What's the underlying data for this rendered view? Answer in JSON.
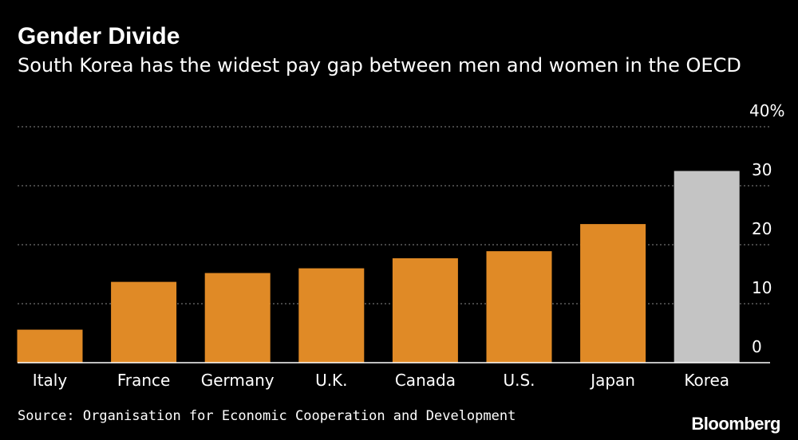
{
  "header": {
    "title": "Gender Divide",
    "subtitle": "South Korea has the widest pay gap between men and women in the OECD"
  },
  "footer": {
    "source": "Source: Organisation for Economic Cooperation and Development",
    "logo": "Bloomberg"
  },
  "colors": {
    "background": "#000000",
    "bar": "#e08a26",
    "highlight_bar": "#c4c4c4",
    "text": "#ffffff",
    "grid": "#8a8a8a"
  },
  "chart_data": {
    "type": "bar",
    "title": "Gender Divide",
    "subtitle": "South Korea has the widest pay gap between men and women in the OECD",
    "categories": [
      "Italy",
      "France",
      "Germany",
      "U.K.",
      "Canada",
      "U.S.",
      "Japan",
      "Korea"
    ],
    "values": [
      5.6,
      13.7,
      15.2,
      16.0,
      17.7,
      18.9,
      23.5,
      32.5
    ],
    "highlight": "Korea",
    "ylim": [
      0,
      40
    ],
    "yticks": [
      {
        "value": 0,
        "label": "0"
      },
      {
        "value": 10,
        "label": "10"
      },
      {
        "value": 20,
        "label": "20"
      },
      {
        "value": 30,
        "label": "30"
      },
      {
        "value": 40,
        "label": "40%"
      }
    ],
    "xlabel": "",
    "ylabel": "",
    "grid": true,
    "yaxis_side": "right"
  }
}
